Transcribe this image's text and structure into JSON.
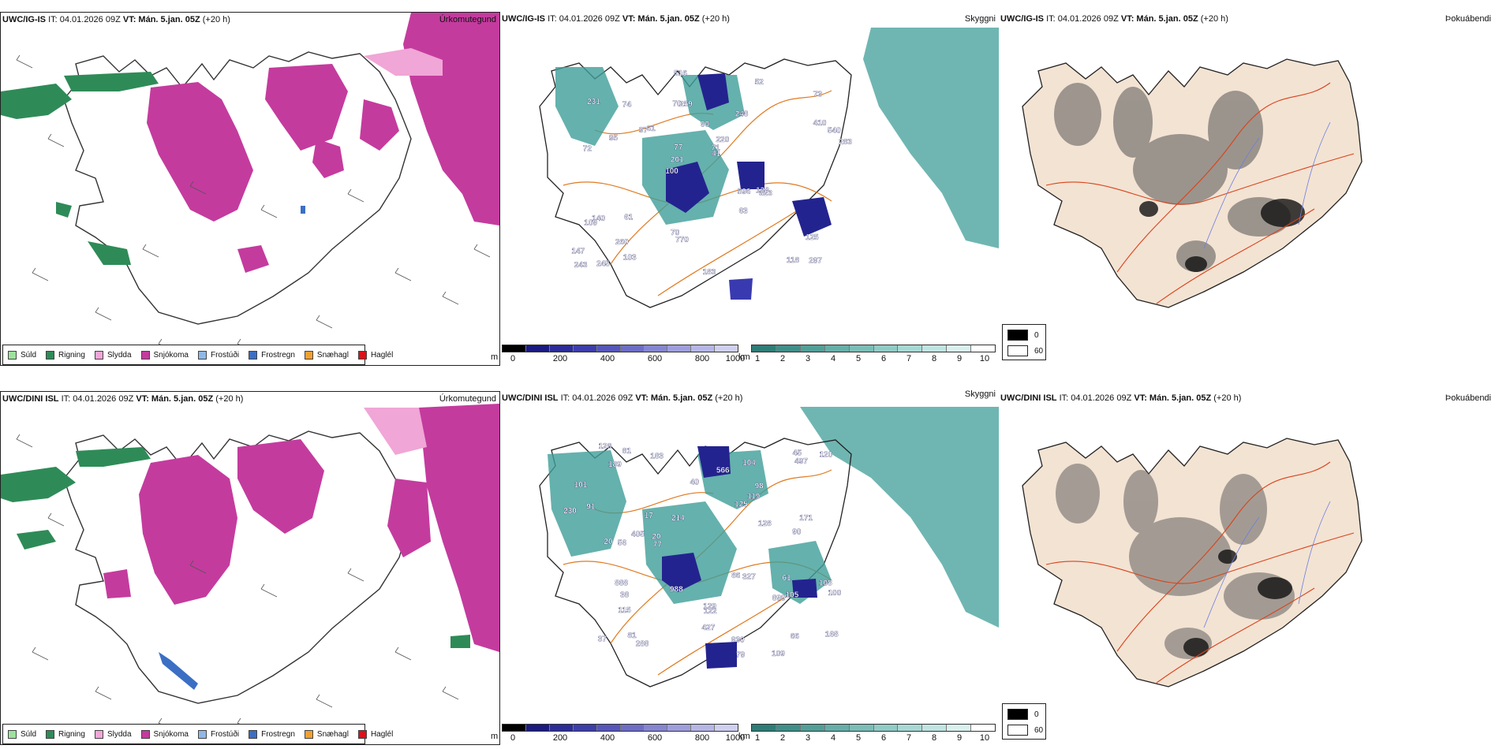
{
  "meta": {
    "issue_time": "IT: 04.01.2026 09Z",
    "valid_label": "VT:",
    "valid_time": "Mán. 5.jan. 05Z",
    "lead": "(+20 h)"
  },
  "models": [
    {
      "name": "UWC/IG-IS"
    },
    {
      "name": "UWC/DINI ISL"
    }
  ],
  "panels": {
    "precip_type": "Úrkomutegund",
    "ceiling": "Skyggni",
    "cloud": "Þokuábendi"
  },
  "precip_legend": [
    {
      "label": "Súld",
      "color": "#9de29d"
    },
    {
      "label": "Rigning",
      "color": "#2e8b57"
    },
    {
      "label": "Slydda",
      "color": "#f0a6d6"
    },
    {
      "label": "Snjókoma",
      "color": "#c43b9e"
    },
    {
      "label": "Frostúði",
      "color": "#8fb8e8"
    },
    {
      "label": "Frostregn",
      "color": "#3b6fc4"
    },
    {
      "label": "Snæhagl",
      "color": "#f0a030"
    },
    {
      "label": "Haglél",
      "color": "#e0101a"
    }
  ],
  "scale_m": {
    "unit": "m",
    "ticks": [
      "0",
      "200",
      "400",
      "600",
      "800",
      "1000"
    ]
  },
  "scale_km": {
    "unit": "km",
    "ticks": [
      "1",
      "2",
      "3",
      "4",
      "5",
      "6",
      "7",
      "8",
      "9",
      "10"
    ]
  },
  "cloud_key": {
    "low": "0",
    "high": "60"
  },
  "ceiling_labels": [
    [
      "297",
      "72",
      "73",
      "100",
      "248",
      "245",
      "70",
      "90",
      "140",
      "61",
      "147",
      "260",
      "259",
      "220",
      "323",
      "231",
      "516",
      "283",
      "596",
      "410",
      "201",
      "70",
      "77",
      "74",
      "52",
      "61",
      "118",
      "125",
      "128",
      "183",
      "97",
      "95",
      "63",
      "103",
      "540",
      "71",
      "243",
      "770",
      "41",
      "109"
    ],
    [
      "108",
      "109",
      "122",
      "37",
      "129",
      "17",
      "183",
      "98",
      "79",
      "90",
      "327",
      "497",
      "230",
      "128",
      "288",
      "189",
      "115",
      "81",
      "104",
      "40",
      "91",
      "61",
      "66",
      "20",
      "120",
      "125",
      "899",
      "988",
      "888",
      "405",
      "427",
      "171",
      "168",
      "930",
      "100",
      "56",
      "101",
      "45",
      "77",
      "128",
      "105",
      "119",
      "38",
      "81",
      "566",
      "86",
      "214",
      "20"
    ]
  ]
}
